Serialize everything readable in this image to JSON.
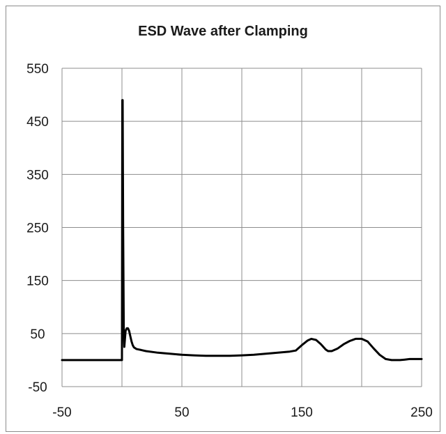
{
  "chart_data": {
    "type": "line",
    "title": "ESD Wave after Clamping",
    "xlabel": "",
    "ylabel": "",
    "xlim": [
      -50,
      250
    ],
    "ylim": [
      -50,
      550
    ],
    "xticks": [
      -50,
      50,
      150,
      250
    ],
    "yticks": [
      550,
      450,
      350,
      250,
      150,
      50,
      -50
    ],
    "grid": true,
    "line_color": "#000000",
    "series": [
      {
        "x": [
          -50,
          -1,
          -0.5,
          0,
          0.3,
          0.6,
          1,
          1.5,
          2,
          3,
          4,
          5,
          6,
          7,
          8,
          9,
          10,
          12,
          14,
          16,
          20,
          30,
          40,
          50,
          60,
          70,
          80,
          90,
          100,
          110,
          120,
          130,
          140,
          145,
          150,
          155,
          158,
          162,
          166,
          170,
          172,
          175,
          180,
          185,
          190,
          195,
          200,
          205,
          210,
          215,
          220,
          225,
          228,
          232,
          236,
          240,
          245,
          250
        ],
        "y": [
          0,
          0,
          0,
          0,
          490,
          490,
          250,
          60,
          25,
          55,
          60,
          60,
          55,
          45,
          35,
          28,
          24,
          21,
          20,
          19,
          17,
          14,
          12,
          10,
          9,
          8,
          8,
          8,
          9,
          10,
          12,
          14,
          16,
          18,
          28,
          37,
          40,
          38,
          30,
          20,
          17,
          17,
          22,
          30,
          36,
          40,
          40,
          35,
          22,
          10,
          2,
          0,
          0,
          0,
          1,
          2,
          2,
          2
        ]
      }
    ]
  }
}
